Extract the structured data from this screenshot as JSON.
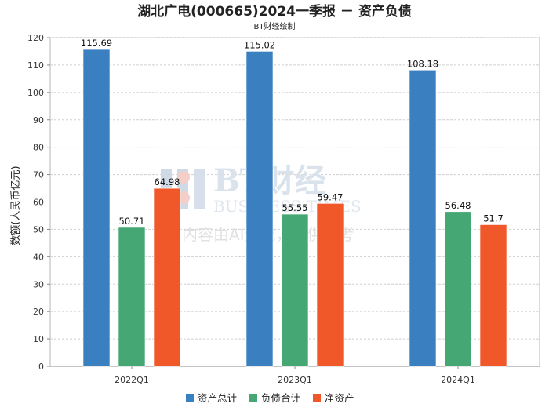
{
  "chart_data": {
    "type": "bar",
    "title": "湖北广电(000665)2024一季报 － 资产负债",
    "subtitle": "BT财经绘制",
    "ylabel": "数额(人民币亿元)",
    "xlabel": "",
    "ylim": [
      0,
      120
    ],
    "yticks": [
      0,
      10,
      20,
      30,
      40,
      50,
      60,
      70,
      80,
      90,
      100,
      110,
      120
    ],
    "grid": true,
    "legend_position": "bottom",
    "categories": [
      "2022Q1",
      "2023Q1",
      "2024Q1"
    ],
    "series": [
      {
        "name": "资产总计",
        "color": "#3a80c0",
        "values": [
          115.69,
          115.02,
          108.18
        ],
        "labels": [
          "115.69",
          "115.02",
          "108.18"
        ]
      },
      {
        "name": "负债合计",
        "color": "#45a874",
        "values": [
          50.71,
          55.55,
          56.48
        ],
        "labels": [
          "50.71",
          "55.55",
          "56.48"
        ]
      },
      {
        "name": "净资产",
        "color": "#f0582a",
        "values": [
          64.98,
          59.47,
          51.7
        ],
        "labels": [
          "64.98",
          "59.47",
          "51.7"
        ]
      }
    ]
  },
  "watermark": {
    "brand": "BT财经",
    "english": "BUSINESS TIMES",
    "notice": "内容由AI生成，仅供参考"
  }
}
